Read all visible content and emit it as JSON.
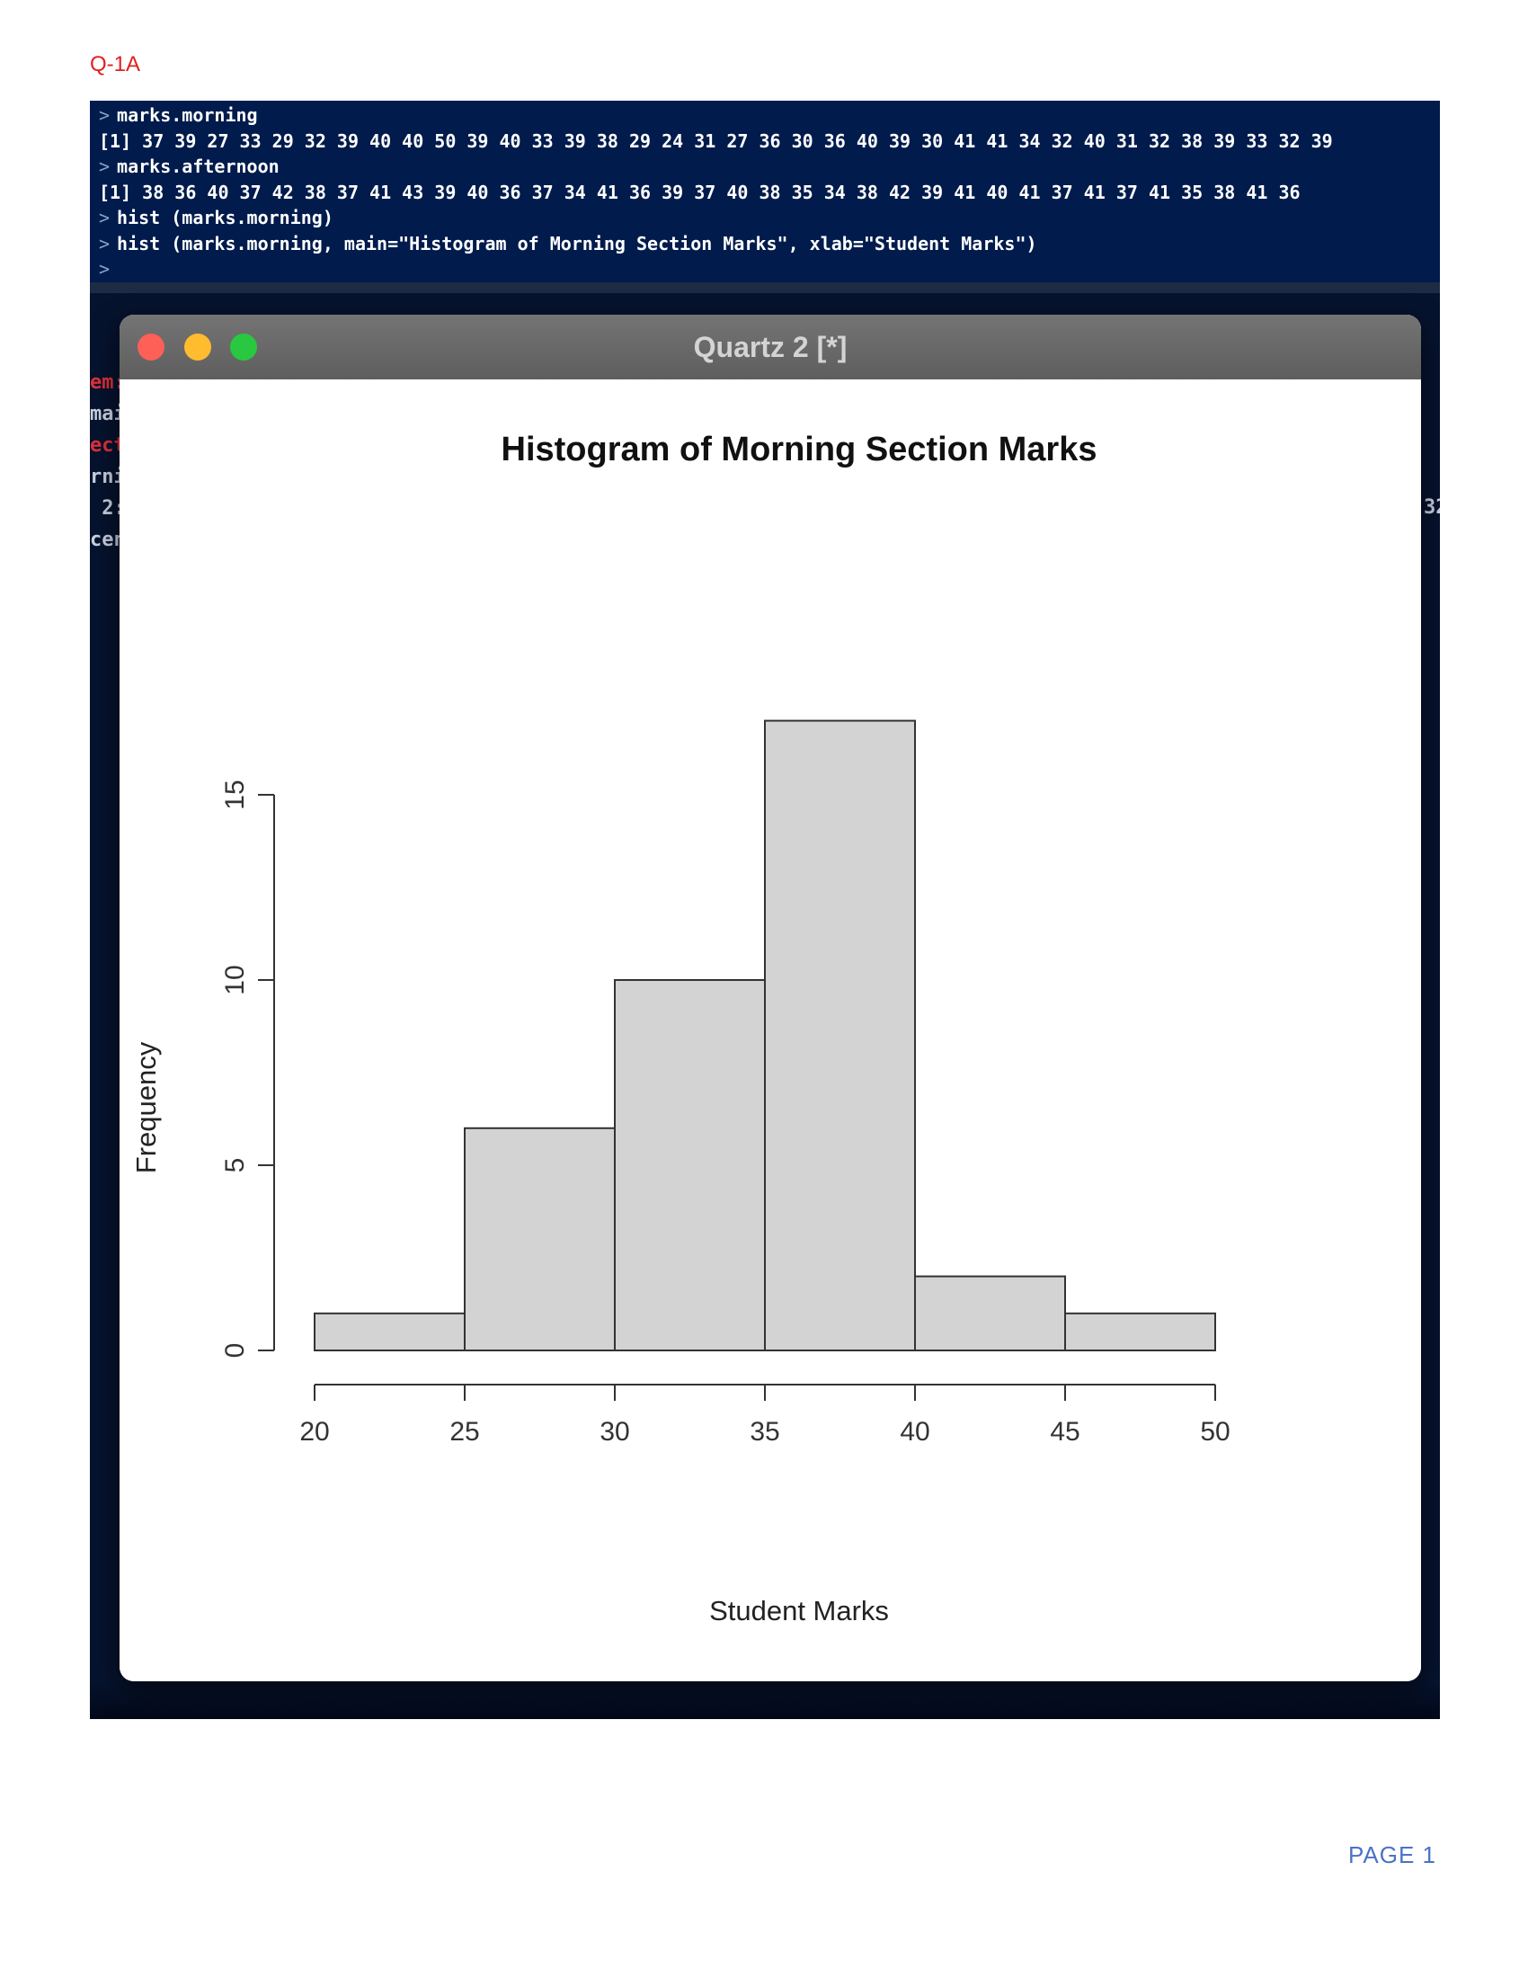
{
  "document": {
    "header_label": "Q-1A",
    "page_label": "PAGE 1"
  },
  "console": {
    "prompt": ">",
    "lines": [
      {
        "type": "input",
        "text": "marks.morning"
      },
      {
        "type": "output",
        "text": "[1] 37 39 27 33 29 32 39 40 40 50 39 40 33 39 38 29 24 31 27 36 30 36 40 39 30 41 41 34 32 40 31 32 38 39 33 32 39"
      },
      {
        "type": "input",
        "text": "marks.afternoon"
      },
      {
        "type": "output",
        "text": "[1] 38 36 40 37 42 38 37 41 43 39 40 36 37 34 41 36 39 37 40 38 35 34 38 42 39 41 40 41 37 41 37 41 35 38 41 36"
      },
      {
        "type": "input",
        "text": "hist (marks.morning)"
      },
      {
        "type": "input",
        "text": "hist (marks.morning, main=\"Histogram of Morning Section Marks\", xlab=\"Student Marks\")"
      },
      {
        "type": "input",
        "text": ""
      }
    ],
    "background_fragments_left": [
      {
        "text": "em:",
        "color": "#e0303a"
      },
      {
        "text": "mai",
        "color": "#c9d1e0"
      },
      {
        "text": "ect",
        "color": "#e0303a"
      },
      {
        "text": "rni",
        "color": "#c9d1e0"
      },
      {
        "text": " 2:",
        "color": "#c9d1e0"
      },
      {
        "text": "cen",
        "color": "#c9d1e0"
      }
    ],
    "background_fragment_right": "32"
  },
  "window": {
    "title": "Quartz 2 [*]"
  },
  "colors": {
    "console_bg": "#001b4c",
    "bar_fill": "#d3d3d3",
    "bar_stroke": "#333333",
    "header_red": "#e02020",
    "page_blue": "#4a72c8"
  },
  "chart_data": {
    "type": "bar",
    "subtype": "histogram",
    "title": "Histogram of Morning Section Marks",
    "xlabel": "Student Marks",
    "ylabel": "Frequency",
    "bins": [
      {
        "from": 20,
        "to": 25,
        "count": 1
      },
      {
        "from": 25,
        "to": 30,
        "count": 6
      },
      {
        "from": 30,
        "to": 35,
        "count": 10
      },
      {
        "from": 35,
        "to": 40,
        "count": 17
      },
      {
        "from": 40,
        "to": 45,
        "count": 2
      },
      {
        "from": 45,
        "to": 50,
        "count": 1
      }
    ],
    "xlim": [
      20,
      50
    ],
    "ylim": [
      0,
      17
    ],
    "x_ticks": [
      20,
      25,
      30,
      35,
      40,
      45,
      50
    ],
    "y_ticks": [
      0,
      5,
      10,
      15
    ],
    "grid": false
  }
}
